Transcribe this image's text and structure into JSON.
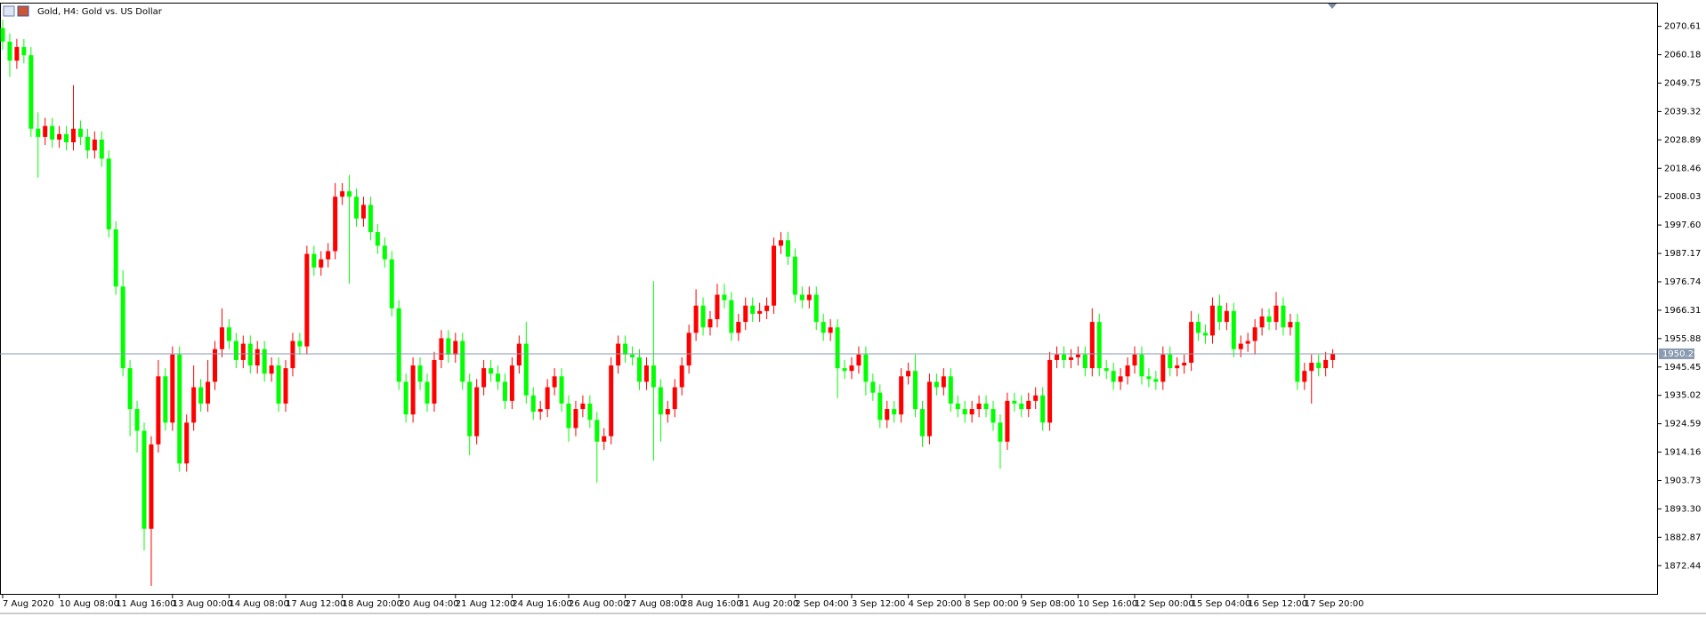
{
  "chart_data": {
    "type": "candlestick",
    "title": "Gold, H4:  Gold vs. US Dollar",
    "up_color": "#ff0000",
    "down_color": "#00ff00",
    "categories": [
      "7 Aug 2020",
      null,
      null,
      null,
      null,
      null,
      null,
      null,
      "10 Aug 08:00",
      null,
      null,
      null,
      null,
      null,
      null,
      null,
      "11 Aug 16:00",
      null,
      null,
      null,
      null,
      null,
      null,
      null,
      "13 Aug 00:00",
      null,
      null,
      null,
      null,
      null,
      null,
      null,
      "14 Aug 08:00",
      null,
      null,
      null,
      null,
      null,
      null,
      null,
      "17 Aug 12:00",
      null,
      null,
      null,
      null,
      null,
      null,
      null,
      "18 Aug 20:00",
      null,
      null,
      null,
      null,
      null,
      null,
      null,
      "20 Aug 04:00",
      null,
      null,
      null,
      null,
      null,
      null,
      null,
      "21 Aug 12:00",
      null,
      null,
      null,
      null,
      null,
      null,
      null,
      "24 Aug 16:00",
      null,
      null,
      null,
      null,
      null,
      null,
      null,
      "26 Aug 00:00",
      null,
      null,
      null,
      null,
      null,
      null,
      null,
      "27 Aug 08:00",
      null,
      null,
      null,
      null,
      null,
      null,
      null,
      "28 Aug 16:00",
      null,
      null,
      null,
      null,
      null,
      null,
      null,
      "31 Aug 20:00",
      null,
      null,
      null,
      null,
      null,
      null,
      null,
      "2 Sep 04:00",
      null,
      null,
      null,
      null,
      null,
      null,
      null,
      "3 Sep 12:00",
      null,
      null,
      null,
      null,
      null,
      null,
      null,
      "4 Sep 20:00",
      null,
      null,
      null,
      null,
      null,
      null,
      null,
      "8 Sep 00:00",
      null,
      null,
      null,
      null,
      null,
      null,
      null,
      "9 Sep 08:00",
      null,
      null,
      null,
      null,
      null,
      null,
      null,
      "10 Sep 16:00",
      null,
      null,
      null,
      null,
      null,
      null,
      null,
      "12 Sep 00:00",
      null,
      null,
      null,
      null,
      null,
      null,
      null,
      "15 Sep 04:00",
      null,
      null,
      null,
      null,
      null,
      null,
      null,
      "16 Sep 12:00",
      null,
      null,
      null,
      null,
      null,
      null,
      null,
      "17 Sep 20:00",
      null,
      null,
      null,
      null
    ],
    "open": [
      2070,
      2065,
      2058,
      2063,
      2060,
      2033,
      2030,
      2034,
      2029,
      2031,
      2028,
      2033,
      2030,
      2025,
      2029,
      2022,
      1996,
      1975,
      1945,
      1930,
      1922,
      1886,
      1917,
      1942,
      1925,
      1950,
      1910,
      1925,
      1938,
      1932,
      1940,
      1952,
      1960,
      1955,
      1948,
      1954,
      1946,
      1952,
      1943,
      1946,
      1932,
      1945,
      1955,
      1953,
      1987,
      1982,
      1985,
      1988,
      2008,
      2010,
      2008,
      2000,
      2005,
      1995,
      1990,
      1985,
      1967,
      1940,
      1928,
      1946,
      1940,
      1932,
      1948,
      1956,
      1950,
      1955,
      1940,
      1920,
      1938,
      1945,
      1943,
      1940,
      1933,
      1946,
      1954,
      1935,
      1929,
      1930,
      1938,
      1942,
      1932,
      1923,
      1930,
      1932,
      1926,
      1918,
      1920,
      1946,
      1954,
      1950,
      1949,
      1940,
      1946,
      1938,
      1928,
      1930,
      1938,
      1946,
      1958,
      1968,
      1960,
      1963,
      1972,
      1970,
      1958,
      1962,
      1968,
      1965,
      1966,
      1968,
      1990,
      1992,
      1986,
      1972,
      1970,
      1972,
      1962,
      1958,
      1960,
      1945,
      1944,
      1946,
      1950,
      1940,
      1936,
      1926,
      1930,
      1928,
      1942,
      1944,
      1930,
      1920,
      1940,
      1938,
      1942,
      1932,
      1930,
      1928,
      1930,
      1932,
      1930,
      1925,
      1918,
      1933,
      1932,
      1930,
      1933,
      1935,
      1925,
      1948,
      1950,
      1948,
      1949,
      1950,
      1945,
      1962,
      1945,
      1944,
      1940,
      1942,
      1946,
      1950,
      1942,
      1941,
      1940,
      1950,
      1945,
      1946,
      1947,
      1962,
      1958,
      1957,
      1968,
      1962,
      1966,
      1952,
      1954,
      1955,
      1960,
      1964,
      1962,
      1968,
      1960,
      1962,
      1940,
      1944,
      1947,
      1945,
      1948
    ],
    "high": [
      2073,
      2068,
      2066,
      2066,
      2063,
      2039,
      2037,
      2037,
      2034,
      2034,
      2049,
      2036,
      2033,
      2032,
      2032,
      2025,
      1999,
      1981,
      1948,
      1933,
      1925,
      1920,
      1948,
      1945,
      1953,
      1953,
      1928,
      1946,
      1941,
      1948,
      1955,
      1967,
      1963,
      1958,
      1957,
      1957,
      1955,
      1955,
      1949,
      1949,
      1948,
      1958,
      1958,
      1990,
      1990,
      1988,
      1991,
      2013,
      2013,
      2016,
      2011,
      2008,
      2008,
      1998,
      1993,
      1988,
      1970,
      1943,
      1949,
      1949,
      1943,
      1951,
      1959,
      1959,
      1958,
      1958,
      1943,
      1941,
      1948,
      1948,
      1946,
      1943,
      1949,
      1957,
      1962,
      1938,
      1933,
      1941,
      1945,
      1945,
      1935,
      1933,
      1935,
      1935,
      1929,
      1923,
      1949,
      1957,
      1957,
      1953,
      1952,
      1949,
      1977,
      1941,
      1933,
      1941,
      1949,
      1961,
      1974,
      1971,
      1966,
      1976,
      1976,
      1973,
      1965,
      1971,
      1971,
      1969,
      1971,
      1993,
      1995,
      1995,
      1989,
      1975,
      1975,
      1975,
      1965,
      1963,
      1963,
      1948,
      1949,
      1953,
      1953,
      1943,
      1939,
      1933,
      1933,
      1945,
      1947,
      1950,
      1933,
      1943,
      1943,
      1945,
      1945,
      1935,
      1933,
      1933,
      1935,
      1935,
      1933,
      1928,
      1936,
      1936,
      1935,
      1936,
      1938,
      1938,
      1951,
      1953,
      1953,
      1952,
      1953,
      1953,
      1967,
      1965,
      1948,
      1947,
      1945,
      1949,
      1953,
      1953,
      1945,
      1944,
      1953,
      1953,
      1949,
      1950,
      1966,
      1965,
      1961,
      1971,
      1972,
      1969,
      1969,
      1957,
      1958,
      1963,
      1967,
      1967,
      1973,
      1971,
      1965,
      1965,
      1947,
      1950,
      1950,
      1951,
      1952
    ],
    "low": [
      2062,
      2052,
      2055,
      2057,
      2030,
      2015,
      2027,
      2026,
      2026,
      2025,
      2025,
      2027,
      2022,
      2022,
      2019,
      1993,
      1972,
      1942,
      1920,
      1914,
      1878,
      1865,
      1914,
      1922,
      1922,
      1907,
      1907,
      1922,
      1929,
      1929,
      1937,
      1949,
      1952,
      1945,
      1945,
      1943,
      1943,
      1940,
      1940,
      1929,
      1929,
      1942,
      1950,
      1950,
      1979,
      1979,
      1982,
      1985,
      2005,
      1976,
      1997,
      1997,
      1992,
      1987,
      1982,
      1964,
      1937,
      1925,
      1925,
      1937,
      1929,
      1929,
      1945,
      1947,
      1947,
      1937,
      1913,
      1917,
      1935,
      1940,
      1937,
      1930,
      1930,
      1943,
      1932,
      1926,
      1926,
      1927,
      1935,
      1929,
      1918,
      1920,
      1927,
      1923,
      1903,
      1915,
      1917,
      1943,
      1947,
      1946,
      1937,
      1937,
      1911,
      1918,
      1925,
      1927,
      1935,
      1943,
      1955,
      1957,
      1957,
      1960,
      1967,
      1955,
      1955,
      1959,
      1962,
      1962,
      1963,
      1965,
      1987,
      1983,
      1969,
      1967,
      1967,
      1959,
      1955,
      1955,
      1934,
      1941,
      1941,
      1943,
      1935,
      1933,
      1923,
      1923,
      1925,
      1925,
      1939,
      1927,
      1916,
      1917,
      1935,
      1935,
      1929,
      1927,
      1925,
      1925,
      1927,
      1927,
      1922,
      1908,
      1915,
      1929,
      1927,
      1927,
      1930,
      1922,
      1922,
      1945,
      1945,
      1945,
      1946,
      1942,
      1942,
      1942,
      1941,
      1937,
      1937,
      1939,
      1943,
      1939,
      1938,
      1937,
      1937,
      1942,
      1942,
      1943,
      1944,
      1955,
      1954,
      1954,
      1959,
      1959,
      1949,
      1949,
      1951,
      1950,
      1957,
      1959,
      1959,
      1957,
      1957,
      1937,
      1937,
      1932,
      1942,
      1942,
      1945
    ],
    "close": [
      2065,
      2058,
      2063,
      2060,
      2033,
      2030,
      2034,
      2029,
      2031,
      2028,
      2033,
      2030,
      2025,
      2029,
      2022,
      1996,
      1975,
      1945,
      1930,
      1922,
      1886,
      1917,
      1942,
      1925,
      1950,
      1910,
      1925,
      1938,
      1932,
      1940,
      1952,
      1960,
      1955,
      1948,
      1954,
      1946,
      1952,
      1943,
      1946,
      1932,
      1945,
      1955,
      1953,
      1987,
      1982,
      1985,
      1988,
      2008,
      2010,
      2008,
      2000,
      2005,
      1995,
      1990,
      1985,
      1967,
      1940,
      1928,
      1946,
      1940,
      1932,
      1948,
      1956,
      1950,
      1955,
      1940,
      1920,
      1938,
      1945,
      1943,
      1940,
      1933,
      1946,
      1954,
      1935,
      1929,
      1930,
      1938,
      1942,
      1932,
      1923,
      1930,
      1932,
      1926,
      1918,
      1920,
      1946,
      1954,
      1950,
      1949,
      1940,
      1946,
      1938,
      1928,
      1930,
      1938,
      1946,
      1958,
      1968,
      1960,
      1963,
      1972,
      1970,
      1958,
      1962,
      1968,
      1965,
      1966,
      1968,
      1990,
      1992,
      1986,
      1972,
      1970,
      1972,
      1962,
      1958,
      1960,
      1945,
      1944,
      1946,
      1950,
      1940,
      1936,
      1926,
      1930,
      1928,
      1942,
      1944,
      1930,
      1920,
      1940,
      1938,
      1942,
      1932,
      1930,
      1928,
      1930,
      1932,
      1930,
      1925,
      1918,
      1933,
      1932,
      1930,
      1933,
      1935,
      1925,
      1948,
      1950,
      1948,
      1949,
      1950,
      1945,
      1962,
      1945,
      1944,
      1940,
      1942,
      1946,
      1950,
      1942,
      1941,
      1940,
      1950,
      1945,
      1946,
      1947,
      1962,
      1958,
      1957,
      1968,
      1962,
      1966,
      1952,
      1954,
      1955,
      1960,
      1964,
      1962,
      1968,
      1960,
      1962,
      1940,
      1944,
      1947,
      1945,
      1948,
      1950.29
    ],
    "current_price": 1950.29,
    "ylim": [
      1862.07,
      2078.98
    ],
    "yticks": [
      2070.61,
      2060.18,
      2049.75,
      2039.32,
      2028.89,
      2018.46,
      2008.03,
      {
        "value": 1997.6,
        "label": "1997.60"
      },
      1987.17,
      1976.74,
      1966.31,
      1955.88,
      1945.45,
      1935.02,
      1924.59,
      1914.16,
      1903.73,
      {
        "value": 1893.3,
        "label": "1893.30"
      },
      1882.87,
      1872.44
    ]
  }
}
